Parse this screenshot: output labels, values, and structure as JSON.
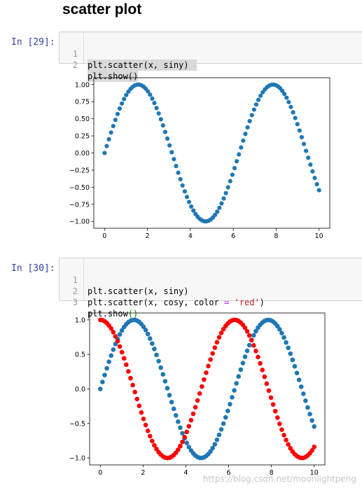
{
  "heading": "scatter plot",
  "cells": [
    {
      "prompt": "In  [29]:",
      "lines": [
        {
          "no": "1",
          "code": "plt.scatter(x, siny)"
        },
        {
          "no": "2",
          "code": "plt.show()"
        }
      ]
    },
    {
      "prompt": "In  [30]:",
      "lines": [
        {
          "no": "1",
          "code": "plt.scatter(x, siny)"
        },
        {
          "no": "2",
          "code_parts": [
            "plt.scatter(x, cosy, color ",
            "=",
            " ",
            "'red'",
            ")"
          ]
        },
        {
          "no": "3",
          "code_parts": [
            "plt.show",
            "()"
          ]
        }
      ]
    }
  ],
  "watermark": "https://blog.csdn.net/moonlightpeng",
  "colors": {
    "series_blue": "#1f77b4",
    "series_red": "#ff0000",
    "prompt_in": "#303f9f"
  },
  "chart_data": [
    {
      "type": "scatter",
      "title": "",
      "xlabel": "",
      "ylabel": "",
      "xlim": [
        -0.5,
        10.5
      ],
      "ylim": [
        -1.1,
        1.1
      ],
      "xticks": [
        0,
        2,
        4,
        6,
        8,
        10
      ],
      "yticks": [
        -1.0,
        -0.75,
        -0.5,
        -0.25,
        0.0,
        0.25,
        0.5,
        0.75,
        1.0
      ],
      "ytick_labels": [
        "−1.00",
        "−0.75",
        "−0.50",
        "−0.25",
        "0.00",
        "0.25",
        "0.50",
        "0.75",
        "1.00"
      ],
      "x": {
        "start": 0,
        "stop": 10,
        "count": 100
      },
      "series": [
        {
          "function": "sin",
          "color": "#1f77b4"
        }
      ],
      "grid": false
    },
    {
      "type": "scatter",
      "title": "",
      "xlabel": "",
      "ylabel": "",
      "xlim": [
        -0.5,
        10.5
      ],
      "ylim": [
        -1.1,
        1.1
      ],
      "xticks": [
        0,
        2,
        4,
        6,
        8,
        10
      ],
      "yticks": [
        -1.0,
        -0.5,
        0.0,
        0.5,
        1.0
      ],
      "ytick_labels": [
        "−1.0",
        "−0.5",
        "0.0",
        "0.5",
        "1.0"
      ],
      "x": {
        "start": 0,
        "stop": 10,
        "count": 100
      },
      "series": [
        {
          "function": "sin",
          "color": "#1f77b4"
        },
        {
          "function": "cos",
          "color": "#ff0000"
        }
      ],
      "grid": false
    }
  ]
}
